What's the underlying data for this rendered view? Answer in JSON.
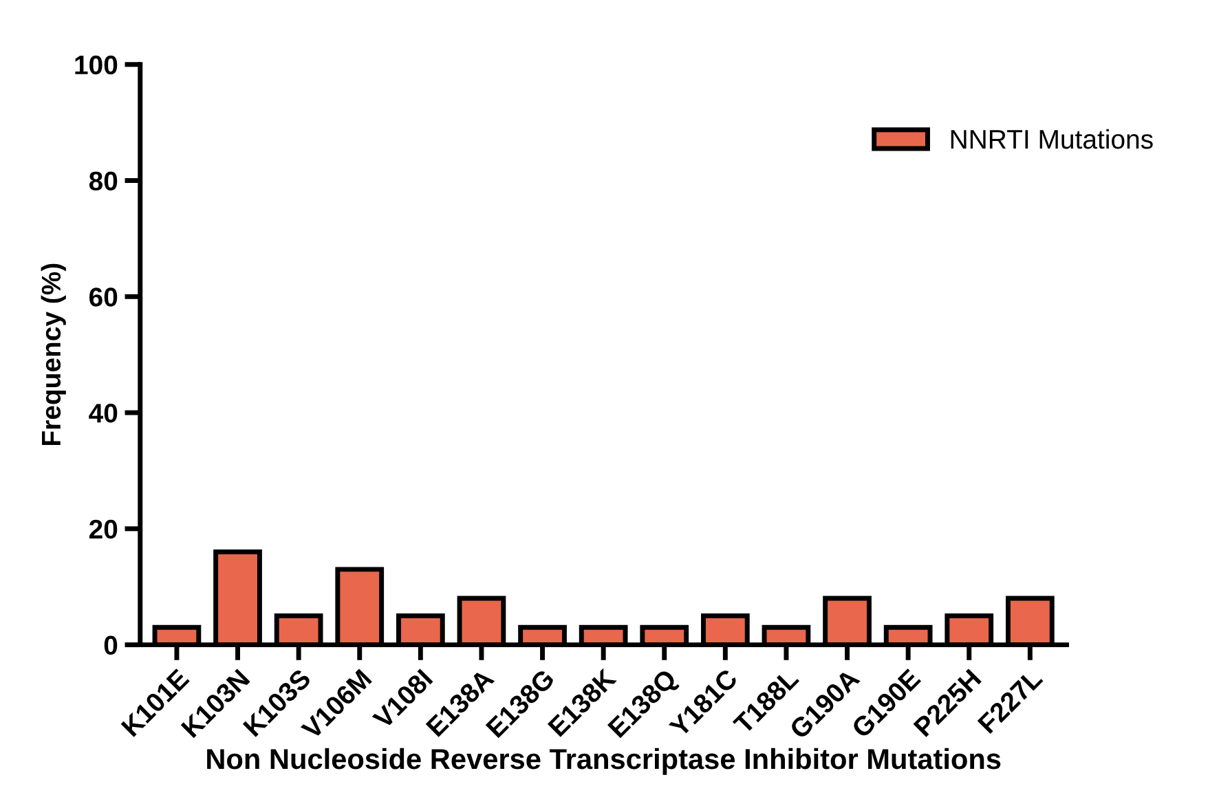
{
  "chart_data": {
    "type": "bar",
    "xlabel": "Non Nucleoside Reverse Transcriptase Inhibitor Mutations",
    "ylabel": "Frequency (%)",
    "categories": [
      "K101E",
      "K103N",
      "K103S",
      "V106M",
      "V108I",
      "E138A",
      "E138G",
      "E138K",
      "E138Q",
      "Y181C",
      "T188L",
      "G190A",
      "G190E",
      "P225H",
      "F227L"
    ],
    "series": [
      {
        "name": "NNRTI Mutations",
        "color": "#e8674d",
        "values": [
          3,
          16,
          5,
          13,
          5,
          8,
          3,
          3,
          3,
          5,
          3,
          8,
          3,
          5,
          8
        ]
      }
    ],
    "ylim": [
      0,
      100
    ],
    "yticks": [
      0,
      20,
      40,
      60,
      80,
      100
    ],
    "grid": false,
    "legend": "top right"
  }
}
